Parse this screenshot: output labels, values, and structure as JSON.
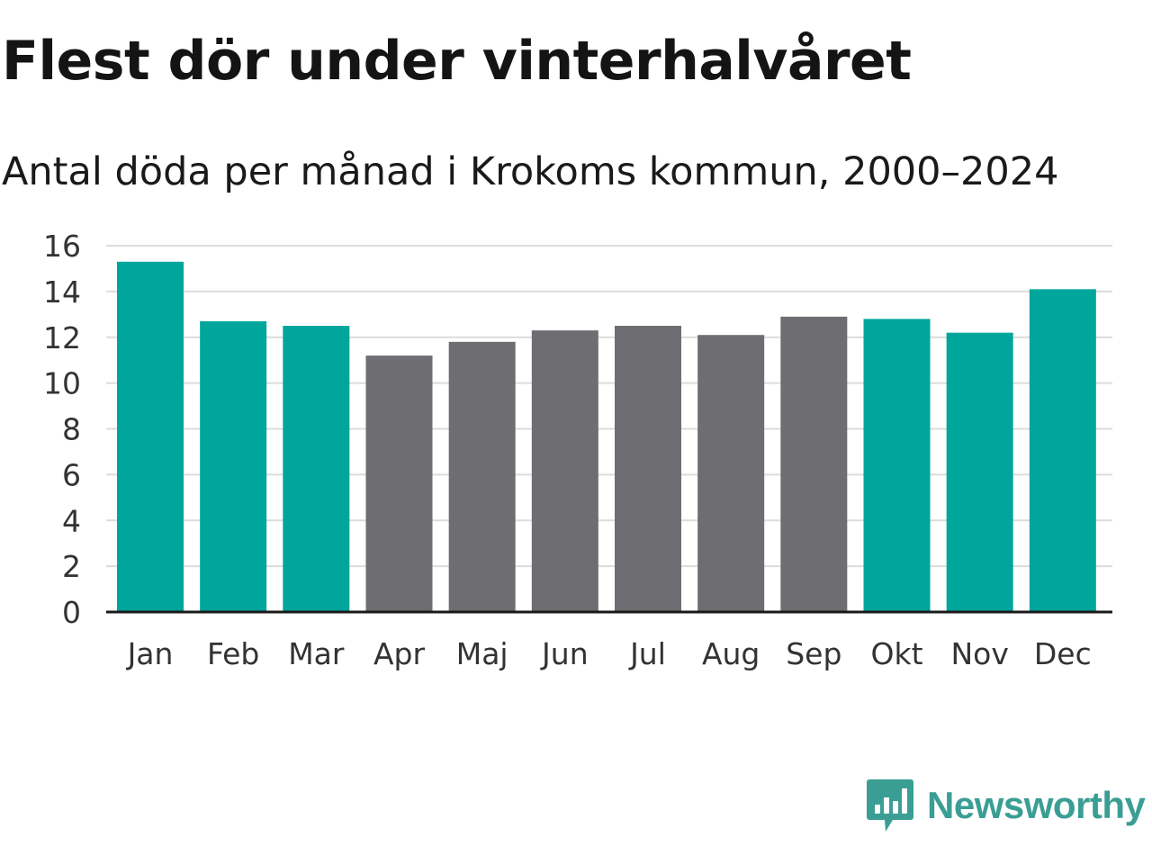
{
  "chart_data": {
    "type": "bar",
    "title": "Flest dör under vinterhalvåret",
    "subtitle": "Antal döda per månad i Krokoms kommun, 2000–2024",
    "xlabel": "",
    "ylabel": "",
    "ylim": [
      0,
      16
    ],
    "yticks": [
      "0",
      "2",
      "4",
      "6",
      "8",
      "10",
      "12",
      "14",
      "16"
    ],
    "grid": true,
    "categories": [
      "Jan",
      "Feb",
      "Mar",
      "Apr",
      "Maj",
      "Jun",
      "Jul",
      "Aug",
      "Sep",
      "Okt",
      "Nov",
      "Dec"
    ],
    "values": [
      15.3,
      12.7,
      12.5,
      11.2,
      11.8,
      12.3,
      12.5,
      12.1,
      12.9,
      12.8,
      12.2,
      14.1
    ],
    "highlight": [
      true,
      true,
      true,
      false,
      false,
      false,
      false,
      false,
      false,
      true,
      true,
      true
    ],
    "colors": {
      "highlight": "#00a59b",
      "other": "#6e6d72",
      "grid": "#dcdcdc",
      "axis": "#1a1a1a"
    }
  },
  "brand": {
    "name": "Newsworthy",
    "icon": "newsworthy-logo-icon",
    "color": "#3a9e94"
  }
}
